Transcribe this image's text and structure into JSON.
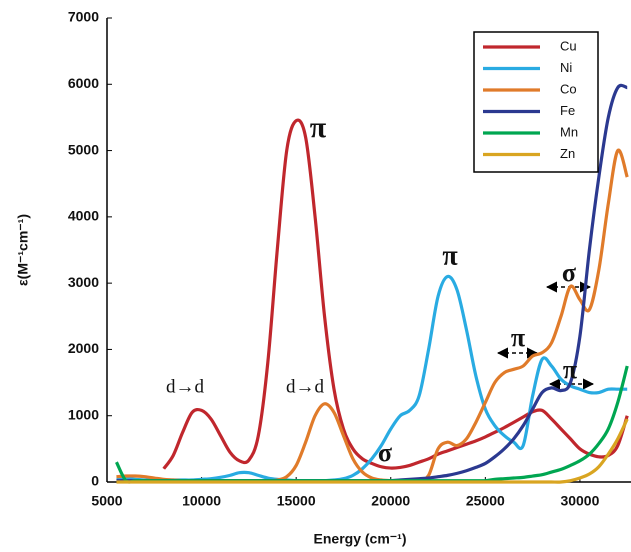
{
  "chart_data": {
    "type": "line",
    "x_label": "Energy (cm⁻¹)",
    "y_label": "ε(M⁻¹cm⁻¹)",
    "xlim": [
      5000,
      32700
    ],
    "xticks": [
      5000,
      10000,
      15000,
      20000,
      25000,
      30000
    ],
    "ylim": [
      0,
      7000
    ],
    "yticks": [
      0,
      1000,
      2000,
      3000,
      4000,
      5000,
      6000,
      7000
    ],
    "legend": "upper right",
    "x": [
      5500,
      6000,
      6500,
      7000,
      7500,
      8000,
      8500,
      9000,
      9500,
      10000,
      10500,
      11000,
      11500,
      12000,
      12500,
      13000,
      13500,
      14000,
      14500,
      15000,
      15500,
      16000,
      16500,
      17000,
      17500,
      18000,
      18500,
      19000,
      19500,
      20000,
      20500,
      21000,
      21500,
      22000,
      22500,
      23000,
      23500,
      24000,
      24500,
      25000,
      25500,
      26000,
      26500,
      27000,
      27500,
      28000,
      28500,
      29000,
      29500,
      30000,
      30500,
      31000,
      31500,
      32000,
      32500
    ],
    "series": [
      {
        "name": "Cu",
        "color": "#c0272d",
        "values": [
          null,
          null,
          null,
          null,
          null,
          200,
          400,
          750,
          1050,
          1080,
          950,
          700,
          450,
          320,
          330,
          700,
          1800,
          3500,
          5000,
          5450,
          5200,
          4000,
          2500,
          1400,
          800,
          500,
          350,
          280,
          230,
          210,
          220,
          250,
          300,
          350,
          420,
          470,
          520,
          570,
          620,
          680,
          750,
          820,
          900,
          980,
          1060,
          1080,
          950,
          800,
          650,
          500,
          420,
          380,
          400,
          550,
          1000
        ]
      },
      {
        "name": "Ni",
        "color": "#29abe2",
        "values": [
          50,
          50,
          40,
          30,
          30,
          30,
          30,
          30,
          30,
          40,
          50,
          70,
          100,
          140,
          140,
          100,
          60,
          40,
          30,
          20,
          20,
          20,
          20,
          30,
          50,
          100,
          200,
          350,
          550,
          800,
          1000,
          1080,
          1300,
          2000,
          2800,
          3100,
          2900,
          2300,
          1600,
          1100,
          850,
          700,
          600,
          550,
          1300,
          1850,
          1750,
          1550,
          1450,
          1400,
          1350,
          1350,
          1400,
          1400,
          1400
        ]
      },
      {
        "name": "Co",
        "color": "#e07b2a",
        "values": [
          80,
          90,
          90,
          80,
          60,
          40,
          30,
          20,
          20,
          20,
          20,
          20,
          20,
          20,
          20,
          20,
          20,
          30,
          80,
          250,
          600,
          1000,
          1180,
          1050,
          700,
          350,
          150,
          60,
          30,
          20,
          20,
          20,
          30,
          100,
          500,
          600,
          550,
          650,
          900,
          1200,
          1500,
          1650,
          1700,
          1750,
          1900,
          1950,
          2100,
          2500,
          2950,
          2750,
          2600,
          3200,
          4200,
          5000,
          4600
        ]
      },
      {
        "name": "Fe",
        "color": "#2b3990",
        "values": [
          20,
          20,
          20,
          20,
          20,
          20,
          20,
          20,
          20,
          20,
          20,
          20,
          20,
          20,
          20,
          20,
          20,
          20,
          20,
          20,
          20,
          20,
          20,
          20,
          20,
          20,
          20,
          20,
          20,
          20,
          30,
          40,
          50,
          60,
          80,
          100,
          130,
          170,
          220,
          280,
          380,
          500,
          650,
          850,
          1100,
          1350,
          1420,
          1380,
          1500,
          2200,
          3500,
          4600,
          5500,
          5950,
          5950
        ]
      },
      {
        "name": "Mn",
        "color": "#00a651",
        "values": [
          300,
          20,
          20,
          20,
          20,
          20,
          20,
          20,
          20,
          20,
          20,
          20,
          20,
          20,
          20,
          20,
          20,
          20,
          20,
          20,
          20,
          20,
          20,
          20,
          20,
          20,
          20,
          20,
          20,
          20,
          20,
          20,
          20,
          20,
          20,
          20,
          20,
          20,
          20,
          20,
          40,
          50,
          60,
          70,
          90,
          110,
          150,
          190,
          250,
          320,
          420,
          580,
          800,
          1200,
          1750
        ]
      },
      {
        "name": "Zn",
        "color": "#d9a521",
        "values": [
          0,
          0,
          0,
          0,
          0,
          0,
          0,
          0,
          0,
          0,
          0,
          0,
          0,
          0,
          0,
          0,
          0,
          0,
          0,
          0,
          0,
          0,
          0,
          0,
          0,
          0,
          0,
          0,
          0,
          0,
          0,
          0,
          0,
          0,
          0,
          0,
          0,
          0,
          0,
          0,
          0,
          0,
          0,
          0,
          0,
          0,
          0,
          0,
          20,
          60,
          120,
          230,
          420,
          650,
          950
        ]
      }
    ],
    "annotations": [
      {
        "text": "π",
        "color": "#c0272d"
      },
      {
        "text": "d→d",
        "color": "#c0272d"
      },
      {
        "text": "d→d",
        "color": "#e07b2a"
      },
      {
        "text": "π",
        "color": "#29abe2"
      },
      {
        "text": "σ",
        "color": "#c0272d"
      },
      {
        "text": "π",
        "color": "#e07b2a"
      },
      {
        "text": "σ",
        "color": "#e07b2a"
      },
      {
        "text": "π",
        "color": "#2b3990"
      }
    ]
  }
}
